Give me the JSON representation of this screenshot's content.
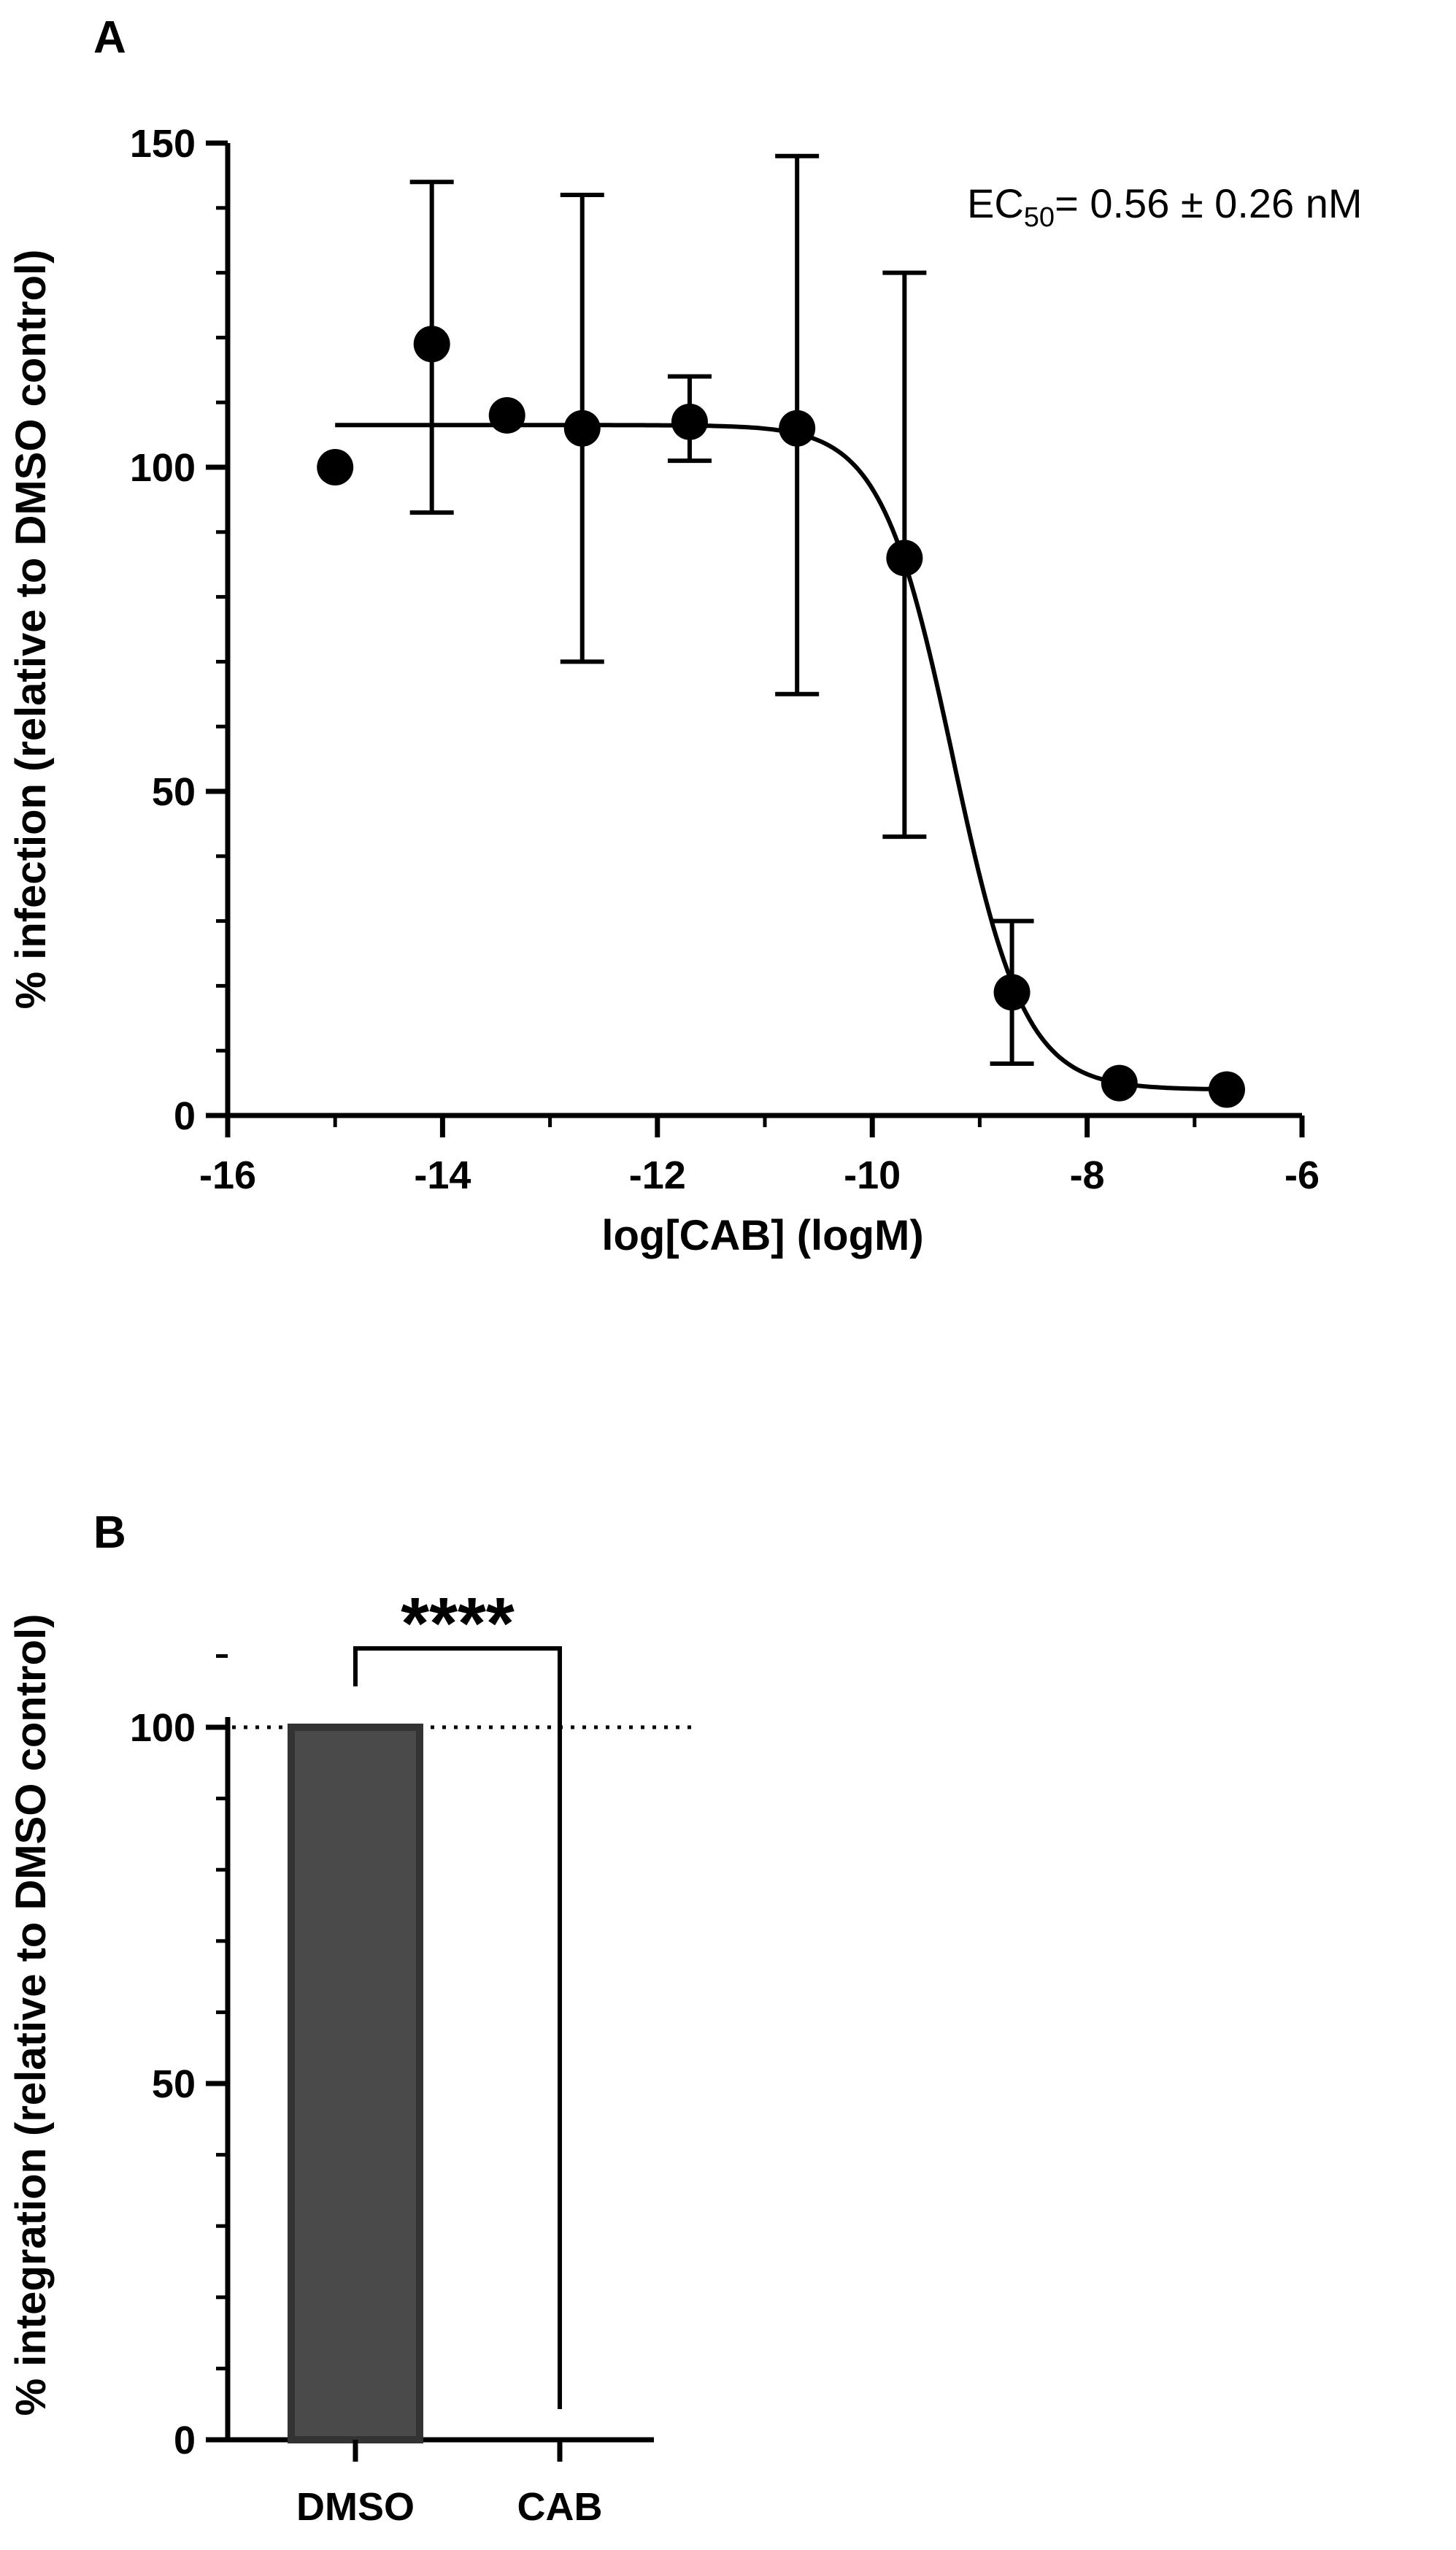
{
  "chart_data": [
    {
      "panel": "A",
      "type": "scatter",
      "xlabel": "log[CAB] (logM)",
      "ylabel": "% infection (relative to DMSO control)",
      "xlim": [
        -16,
        -6
      ],
      "ylim": [
        0,
        150
      ],
      "xticks": [
        -16,
        -14,
        -12,
        -10,
        -8,
        -6
      ],
      "yticks": [
        0,
        50,
        100,
        150
      ],
      "points": [
        {
          "x": -15.0,
          "y": 100
        },
        {
          "x": -14.1,
          "y": 119,
          "err_low": 93,
          "err_high": 144
        },
        {
          "x": -13.4,
          "y": 108
        },
        {
          "x": -12.7,
          "y": 106,
          "err_low": 70,
          "err_high": 142
        },
        {
          "x": -11.7,
          "y": 107,
          "err_low": 101,
          "err_high": 114
        },
        {
          "x": -10.7,
          "y": 106,
          "err_low": 65,
          "err_high": 148
        },
        {
          "x": -9.7,
          "y": 86,
          "err_low": 43,
          "err_high": 130
        },
        {
          "x": -8.7,
          "y": 19,
          "err_low": 8,
          "err_high": 30
        },
        {
          "x": -7.7,
          "y": 5
        },
        {
          "x": -6.7,
          "y": 4
        }
      ],
      "fit": {
        "top": 106.5,
        "bottom": 4,
        "log_ec50": -9.25,
        "hill": 1.3,
        "x_from": -15.0,
        "x_to": -6.7
      },
      "annotation": {
        "prefix": "EC",
        "subscript": "50",
        "suffix": "= 0.56 ± 0.26 nM"
      }
    },
    {
      "panel": "B",
      "type": "bar",
      "xlabel": "",
      "ylabel": "% integration (relative to DMSO control)",
      "categories": [
        "DMSO",
        "CAB"
      ],
      "values": [
        100,
        0
      ],
      "ylim": [
        0,
        110
      ],
      "yticks": [
        0,
        50,
        100
      ],
      "reference_line": 100,
      "significance": "****",
      "bar_color": "#4a4a4a"
    }
  ]
}
